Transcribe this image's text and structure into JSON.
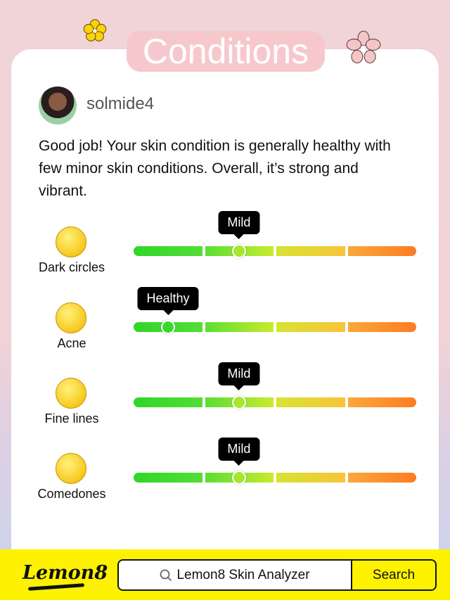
{
  "header": {
    "title": "Conditions"
  },
  "user": {
    "name": "solmide4"
  },
  "summary": "Good job! Your skin condition is generally healthy with few minor skin conditions. Overall, it’s strong and vibrant.",
  "conditions": [
    {
      "label": "Dark circles",
      "level": "Mild",
      "position": 0.373,
      "knob_color": "#a8e62a"
    },
    {
      "label": "Acne",
      "level": "Healthy",
      "position": 0.122,
      "knob_color": "#3ad82c"
    },
    {
      "label": "Fine lines",
      "level": "Mild",
      "position": 0.373,
      "knob_color": "#a8e62a"
    },
    {
      "label": "Comedones",
      "level": "Mild",
      "position": 0.373,
      "knob_color": "#a8e62a"
    }
  ],
  "footer": {
    "logo": "Lemon8",
    "search_text": "Lemon8 Skin Analyzer",
    "search_button": "Search",
    "search_icon": "magnifier-icon"
  },
  "colors": {
    "footer": "#fef200",
    "title_bg": "#f6c8cc"
  }
}
